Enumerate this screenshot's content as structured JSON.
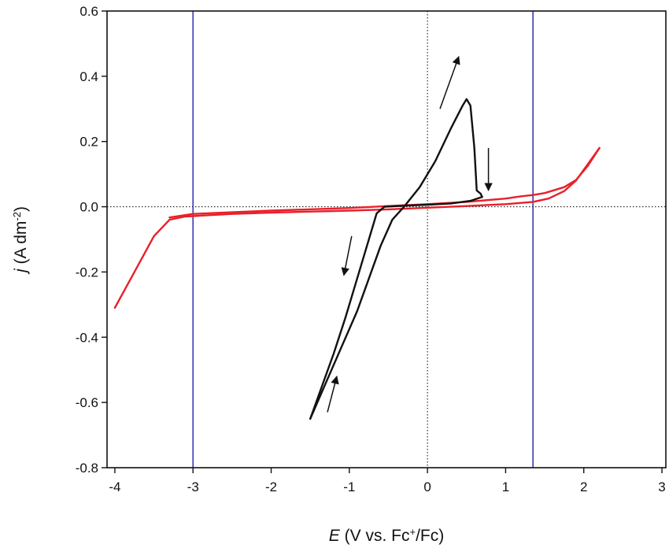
{
  "chart_data": {
    "type": "line",
    "xlabel": {
      "parts": [
        {
          "text": "E",
          "style": "italic"
        },
        {
          "text": " (V vs. Fc",
          "style": "normal"
        },
        {
          "text": "+",
          "style": "sup"
        },
        {
          "text": "/Fc)",
          "style": "normal"
        }
      ]
    },
    "ylabel": {
      "parts": [
        {
          "text": "j",
          "style": "italic"
        },
        {
          "text": " (A dm",
          "style": "normal"
        },
        {
          "text": "-2",
          "style": "sup"
        },
        {
          "text": ")",
          "style": "normal"
        }
      ]
    },
    "xlim": [
      -4.1,
      3.05
    ],
    "ylim": [
      -0.8,
      0.6
    ],
    "x_ticks": [
      -4,
      -3,
      -2,
      -1,
      0,
      1,
      2,
      3
    ],
    "y_ticks": [
      -0.8,
      -0.6,
      -0.4,
      -0.2,
      0.0,
      0.2,
      0.4,
      0.6
    ],
    "x_tick_labels": [
      "-4",
      "-3",
      "-2",
      "-1",
      "0",
      "1",
      "2",
      "3"
    ],
    "y_tick_labels": [
      "-0.8",
      "-0.6",
      "-0.4",
      "-0.2",
      "0.0",
      "0.2",
      "0.4",
      "0.6"
    ],
    "reference_lines": [
      {
        "orientation": "vertical",
        "x": 0,
        "style": "dotted",
        "color": "#000000"
      },
      {
        "orientation": "horizontal",
        "y": 0,
        "style": "dotted",
        "color": "#000000"
      },
      {
        "orientation": "vertical",
        "x": -3.0,
        "style": "solid",
        "color": "#3b3bb0"
      },
      {
        "orientation": "vertical",
        "x": 1.35,
        "style": "solid",
        "color": "#3b3bb0"
      }
    ],
    "series": [
      {
        "color": "#e8202a",
        "points": [
          [
            -4.0,
            -0.31
          ],
          [
            -3.75,
            -0.2
          ],
          [
            -3.5,
            -0.09
          ],
          [
            -3.3,
            -0.04
          ],
          [
            -3.1,
            -0.03
          ],
          [
            -2.5,
            -0.022
          ],
          [
            -2.0,
            -0.018
          ],
          [
            -1.0,
            -0.012
          ],
          [
            -0.5,
            -0.008
          ],
          [
            0.0,
            -0.003
          ],
          [
            0.5,
            0.002
          ],
          [
            1.0,
            0.008
          ],
          [
            1.35,
            0.015
          ],
          [
            1.55,
            0.025
          ],
          [
            1.75,
            0.048
          ],
          [
            1.9,
            0.08
          ],
          [
            2.05,
            0.13
          ],
          [
            2.2,
            0.18
          ]
        ]
      },
      {
        "color": "#e8202a",
        "points": [
          [
            2.2,
            0.18
          ],
          [
            2.05,
            0.125
          ],
          [
            1.9,
            0.082
          ],
          [
            1.75,
            0.06
          ],
          [
            1.5,
            0.042
          ],
          [
            1.35,
            0.036
          ],
          [
            1.2,
            0.032
          ],
          [
            1.0,
            0.025
          ],
          [
            0.5,
            0.015
          ],
          [
            0.0,
            0.008
          ],
          [
            -0.5,
            0.002
          ],
          [
            -1.0,
            -0.004
          ],
          [
            -2.0,
            -0.012
          ],
          [
            -3.0,
            -0.022
          ],
          [
            -3.3,
            -0.033
          ]
        ]
      },
      {
        "color": "#111111",
        "points": [
          [
            -1.5,
            -0.65
          ],
          [
            -1.3,
            -0.54
          ],
          [
            -1.1,
            -0.43
          ],
          [
            -0.9,
            -0.32
          ],
          [
            -0.75,
            -0.22
          ],
          [
            -0.6,
            -0.12
          ],
          [
            -0.45,
            -0.04
          ],
          [
            -0.3,
            0.0
          ],
          [
            -0.1,
            0.06
          ],
          [
            0.1,
            0.14
          ],
          [
            0.3,
            0.24
          ],
          [
            0.45,
            0.31
          ],
          [
            0.5,
            0.33
          ],
          [
            0.55,
            0.31
          ],
          [
            0.6,
            0.18
          ],
          [
            0.63,
            0.05
          ],
          [
            0.68,
            0.04
          ],
          [
            0.7,
            0.03
          ]
        ]
      },
      {
        "color": "#111111",
        "points": [
          [
            0.7,
            0.03
          ],
          [
            0.55,
            0.018
          ],
          [
            0.3,
            0.01
          ],
          [
            0.0,
            0.006
          ],
          [
            -0.3,
            0.003
          ],
          [
            -0.55,
            0.0
          ],
          [
            -0.65,
            -0.02
          ],
          [
            -0.75,
            -0.1
          ],
          [
            -0.9,
            -0.22
          ],
          [
            -1.05,
            -0.34
          ],
          [
            -1.2,
            -0.45
          ],
          [
            -1.35,
            -0.55
          ],
          [
            -1.5,
            -0.65
          ]
        ]
      }
    ],
    "arrows": [
      {
        "x": 0.16,
        "y": 0.3,
        "dx": 0.24,
        "dy": 0.16
      },
      {
        "x": 0.78,
        "y": 0.18,
        "dx": 0.0,
        "dy": -0.13
      },
      {
        "x": -0.97,
        "y": -0.09,
        "dx": -0.1,
        "dy": -0.12
      },
      {
        "x": -1.28,
        "y": -0.63,
        "dx": 0.12,
        "dy": 0.11
      }
    ]
  }
}
